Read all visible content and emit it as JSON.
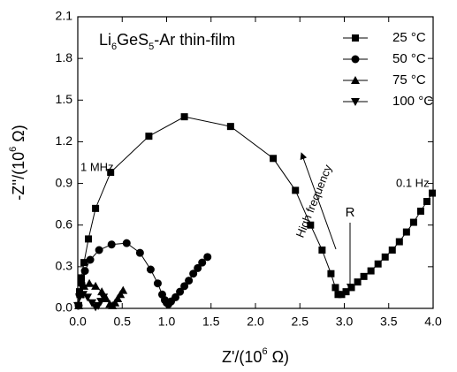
{
  "chart_data": {
    "type": "scatter",
    "annotation_parts": [
      "Li",
      "6",
      "GeS",
      "5",
      "-Ar thin-film"
    ],
    "x_label_parts": [
      "Z'/(10",
      "6",
      " Ω)"
    ],
    "y_label_parts": [
      "-Z''/(10",
      "6",
      " Ω)"
    ],
    "annotations": [
      "1 MHz",
      "High frequency",
      "R",
      "0.1 Hz"
    ],
    "xlim": [
      0,
      4
    ],
    "ylim": [
      0,
      2.1
    ],
    "xticks": [
      {
        "value": 0,
        "label": "0.0"
      },
      0.5,
      {
        "value": 1,
        "label": "1.0"
      },
      1.5,
      {
        "value": 2,
        "label": "2.0"
      },
      2.5,
      {
        "value": 3,
        "label": "3.0"
      },
      3.5,
      {
        "value": 4,
        "label": "4.0"
      }
    ],
    "yticks": [
      {
        "value": 0,
        "label": "0.0"
      },
      0.3,
      0.6,
      0.9,
      1.2,
      1.5,
      1.8,
      2.1
    ],
    "legend": "upper right",
    "series": [
      {
        "name": "25 °C",
        "color": "#000000",
        "marker": "square",
        "x": [
          0.01,
          0.02,
          0.04,
          0.07,
          0.12,
          0.2,
          0.37,
          0.8,
          1.2,
          1.72,
          2.2,
          2.45,
          2.62,
          2.75,
          2.85,
          2.9,
          2.93,
          2.97,
          3.02,
          3.08,
          3.15,
          3.22,
          3.3,
          3.38,
          3.46,
          3.54,
          3.62,
          3.7,
          3.78,
          3.86,
          3.93,
          3.99
        ],
        "values": [
          0.02,
          0.12,
          0.22,
          0.33,
          0.5,
          0.72,
          0.98,
          1.24,
          1.38,
          1.31,
          1.08,
          0.85,
          0.6,
          0.42,
          0.25,
          0.15,
          0.1,
          0.1,
          0.12,
          0.15,
          0.19,
          0.23,
          0.27,
          0.32,
          0.37,
          0.42,
          0.48,
          0.55,
          0.62,
          0.7,
          0.77,
          0.83
        ]
      },
      {
        "name": "50 °C",
        "color": "#000000",
        "marker": "circle",
        "x": [
          0.01,
          0.02,
          0.04,
          0.08,
          0.14,
          0.24,
          0.38,
          0.55,
          0.7,
          0.82,
          0.9,
          0.95,
          0.98,
          1.0,
          1.02,
          1.05,
          1.1,
          1.15,
          1.2,
          1.25,
          1.3,
          1.35,
          1.4,
          1.46
        ],
        "values": [
          0.02,
          0.1,
          0.18,
          0.27,
          0.35,
          0.42,
          0.46,
          0.47,
          0.4,
          0.28,
          0.18,
          0.1,
          0.06,
          0.04,
          0.03,
          0.05,
          0.08,
          0.12,
          0.16,
          0.2,
          0.25,
          0.29,
          0.33,
          0.37
        ]
      },
      {
        "name": "75 °C",
        "color": "#000000",
        "marker": "triangle",
        "x": [
          0.01,
          0.03,
          0.07,
          0.13,
          0.2,
          0.27,
          0.32,
          0.36,
          0.39,
          0.42,
          0.45,
          0.48,
          0.51
        ],
        "values": [
          0.02,
          0.1,
          0.16,
          0.18,
          0.16,
          0.12,
          0.07,
          0.03,
          0.02,
          0.04,
          0.07,
          0.1,
          0.13
        ]
      },
      {
        "name": "100 °C",
        "color": "#000000",
        "marker": "triangle-down",
        "x": [
          0.0,
          0.02,
          0.06,
          0.11,
          0.16,
          0.2,
          0.23,
          0.26,
          0.29
        ],
        "values": [
          0.02,
          0.08,
          0.1,
          0.08,
          0.04,
          0.01,
          0.02,
          0.05,
          0.08
        ]
      }
    ]
  }
}
